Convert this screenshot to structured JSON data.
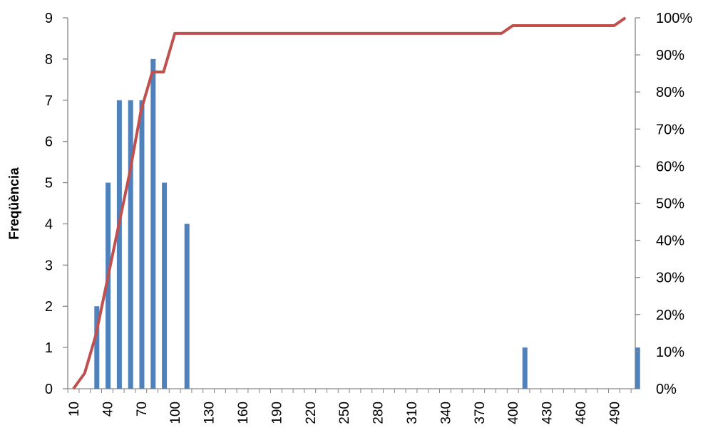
{
  "chart_data": {
    "type": "bar",
    "categories": [
      "10",
      "20",
      "30",
      "40",
      "50",
      "60",
      "70",
      "80",
      "90",
      "100",
      "110",
      "120",
      "130",
      "140",
      "150",
      "160",
      "170",
      "180",
      "190",
      "200",
      "210",
      "220",
      "230",
      "240",
      "250",
      "260",
      "270",
      "280",
      "290",
      "300",
      "310",
      "320",
      "330",
      "340",
      "350",
      "360",
      "370",
      "380",
      "390",
      "400",
      "410",
      "420",
      "430",
      "440",
      "450",
      "460",
      "470",
      "480",
      "490",
      "500"
    ],
    "x_tick_labels": [
      "10",
      "40",
      "70",
      "100",
      "130",
      "160",
      "190",
      "220",
      "250",
      "280",
      "310",
      "340",
      "370",
      "400",
      "430",
      "460",
      "490"
    ],
    "series": [
      {
        "axis": "left",
        "type": "bar",
        "color": "#4F81BD",
        "values": [
          0,
          2,
          5,
          7,
          7,
          7,
          8,
          5,
          0,
          4,
          0,
          0,
          0,
          0,
          0,
          0,
          0,
          0,
          0,
          0,
          0,
          0,
          0,
          0,
          0,
          0,
          0,
          0,
          0,
          0,
          0,
          0,
          0,
          0,
          0,
          0,
          0,
          0,
          0,
          1,
          0,
          0,
          0,
          0,
          0,
          0,
          0,
          0,
          0,
          1
        ]
      },
      {
        "axis": "right",
        "type": "line",
        "color": "#C0504D",
        "values": [
          0.0,
          0.042,
          0.146,
          0.292,
          0.438,
          0.583,
          0.75,
          0.854,
          0.854,
          0.958,
          0.958,
          0.958,
          0.958,
          0.958,
          0.958,
          0.958,
          0.958,
          0.958,
          0.958,
          0.958,
          0.958,
          0.958,
          0.958,
          0.958,
          0.958,
          0.958,
          0.958,
          0.958,
          0.958,
          0.958,
          0.958,
          0.958,
          0.958,
          0.958,
          0.958,
          0.958,
          0.958,
          0.958,
          0.958,
          0.979,
          0.979,
          0.979,
          0.979,
          0.979,
          0.979,
          0.979,
          0.979,
          0.979,
          0.979,
          1.0
        ]
      }
    ],
    "ylabel": "Freqüència",
    "ylim": [
      0,
      9
    ],
    "y_ticks": [
      "0",
      "1",
      "2",
      "3",
      "4",
      "5",
      "6",
      "7",
      "8",
      "9"
    ],
    "y2lim": [
      0,
      1
    ],
    "y2_ticks": [
      "0%",
      "10%",
      "20%",
      "30%",
      "40%",
      "50%",
      "60%",
      "70%",
      "80%",
      "90%",
      "100%"
    ],
    "grid": false,
    "legend": "none"
  }
}
